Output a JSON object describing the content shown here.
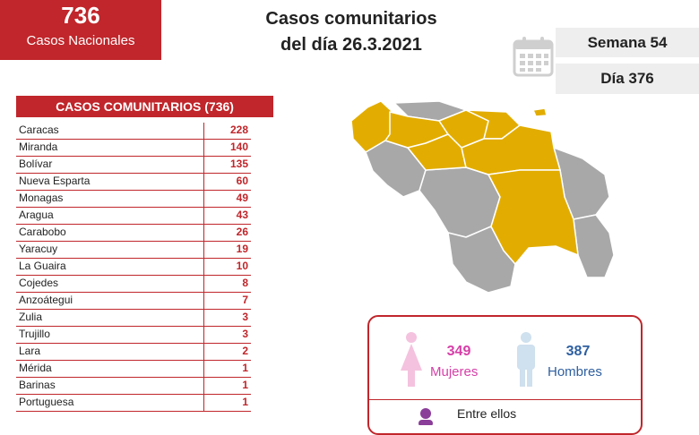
{
  "national": {
    "count": "736",
    "label": "Casos Nacionales"
  },
  "title": {
    "line1": "Casos comunitarios",
    "line2": "del día 26.3.2021"
  },
  "week": {
    "label": "Semana 54"
  },
  "day": {
    "label": "Día 376"
  },
  "table": {
    "header": "CASOS COMUNITARIOS (736)",
    "rows": [
      {
        "name": "Caracas",
        "value": "228"
      },
      {
        "name": "Miranda",
        "value": "140"
      },
      {
        "name": "Bolívar",
        "value": "135"
      },
      {
        "name": "Nueva Esparta",
        "value": "60"
      },
      {
        "name": "Monagas",
        "value": "49"
      },
      {
        "name": "Aragua",
        "value": "43"
      },
      {
        "name": "Carabobo",
        "value": "26"
      },
      {
        "name": "Yaracuy",
        "value": "19"
      },
      {
        "name": "La Guaira",
        "value": "10"
      },
      {
        "name": "Cojedes",
        "value": "8"
      },
      {
        "name": "Anzoátegui",
        "value": "7"
      },
      {
        "name": "Zulia",
        "value": "3"
      },
      {
        "name": "Trujillo",
        "value": "3"
      },
      {
        "name": "Lara",
        "value": "2"
      },
      {
        "name": "Mérida",
        "value": "1"
      },
      {
        "name": "Barinas",
        "value": "1"
      },
      {
        "name": "Portuguesa",
        "value": "1"
      }
    ]
  },
  "gender": {
    "women": {
      "count": "349",
      "label": "Mujeres",
      "color": "#d63fa8"
    },
    "men": {
      "count": "387",
      "label": "Hombres",
      "color": "#2e5fa0"
    },
    "footer": "Entre ellos"
  },
  "colors": {
    "accent": "#c0262b",
    "highlight": "#e2ad00",
    "gray": "#a8a8a8"
  },
  "icons": [
    "calendar-icon",
    "female-icon",
    "male-icon",
    "person-icon"
  ]
}
